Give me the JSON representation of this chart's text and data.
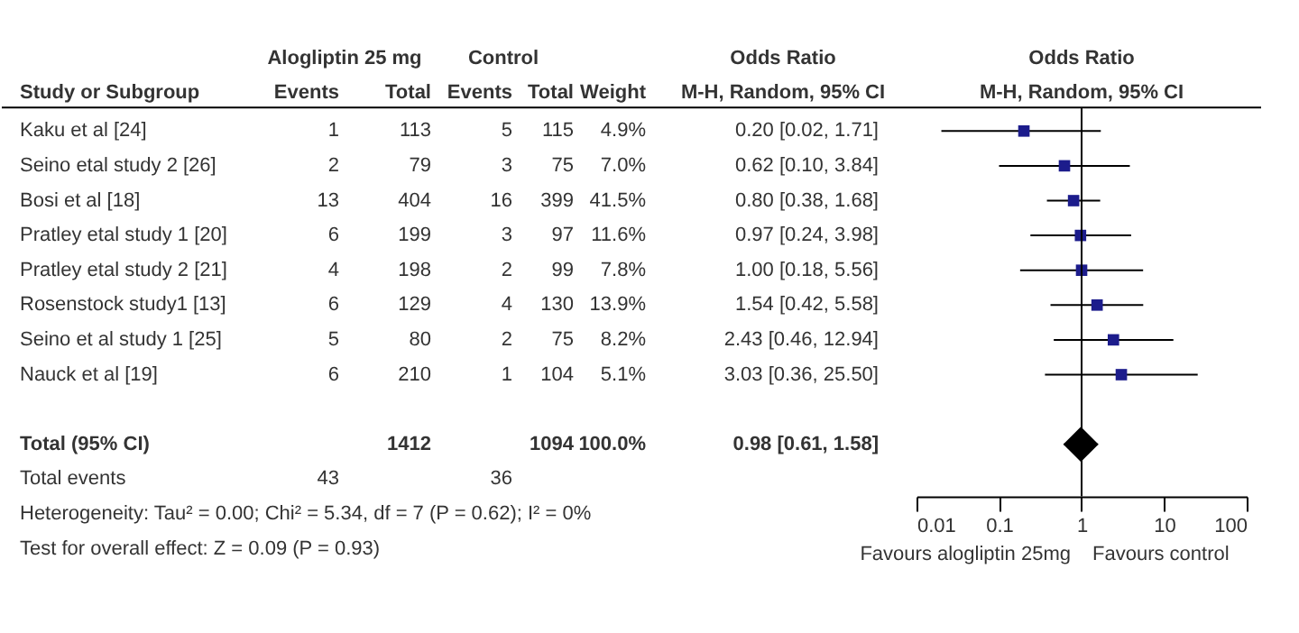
{
  "chart_data": [
    {
      "type": "other",
      "ylabel": "Study or Subgroup",
      "categories": [
        "Events",
        "Total",
        "Events",
        "Total",
        "Weight",
        "M-H, Random, 95% CI"
      ],
      "y_categories": [
        "Kaku et al [24]",
        "Seino etal study 2 [26]",
        "Bosi et al [18]",
        "Pratley etal study 1 [20]",
        "Pratley etal study 2 [21]",
        "Rosenstock study1  [13]",
        "Seino et al study 1 [25]",
        "Nauck et al [19]",
        null,
        "Total (95% CI)",
        "Total events"
      ],
      "cell_labels": [
        [
          "1",
          "113",
          "5",
          "115",
          "4.9%",
          "0.20 [0.02, 1.71]"
        ],
        [
          "2",
          "79",
          "3",
          "75",
          "7.0%",
          "0.62 [0.10, 3.84]"
        ],
        [
          "13",
          "404",
          "16",
          "399",
          "41.5%",
          "0.80 [0.38, 1.68]"
        ],
        [
          "6",
          "199",
          "3",
          "97",
          "11.6%",
          "0.97 [0.24, 3.98]"
        ],
        [
          "4",
          "198",
          "2",
          "99",
          "7.8%",
          "1.00 [0.18, 5.56]"
        ],
        [
          "6",
          "129",
          "4",
          "130",
          "13.9%",
          "1.54 [0.42, 5.58]"
        ],
        [
          "5",
          "80",
          "2",
          "75",
          "8.2%",
          "2.43 [0.46, 12.94]"
        ],
        [
          "6",
          "210",
          "1",
          "104",
          "5.1%",
          "3.03 [0.36, 25.50]"
        ],
        [
          null,
          null,
          null,
          null,
          null,
          null
        ],
        [
          null,
          "1412",
          null,
          "1094",
          "100.0%",
          "0.98 [0.61, 1.58]"
        ],
        [
          "43",
          null,
          "36",
          null,
          null,
          null
        ]
      ],
      "annotations": [
        "Alogliptin 25 mg",
        "Control",
        "Odds Ratio",
        "Heterogeneity: Tau² = 0.00; Chi² = 5.34, df = 7 (P = 0.62); I² = 0%",
        "Test for overall effect: Z = 0.09 (P = 0.93)"
      ]
    },
    {
      "type": "scatter",
      "orientation": "horizontal",
      "title": "Odds Ratio",
      "subtitle": "M-H, Random, 95% CI",
      "categories": [
        null,
        null,
        null,
        null,
        null,
        null,
        null,
        null,
        null,
        null,
        null
      ],
      "series": [
        {
          "color": "#1c1c8c",
          "marker": "square",
          "values": [
            0.2,
            0.62,
            0.8,
            0.97,
            1.0,
            1.54,
            2.43,
            3.03,
            null,
            null,
            null
          ],
          "errors": [
            [
              0.02,
              1.71
            ],
            [
              0.1,
              3.84
            ],
            [
              0.38,
              1.68
            ],
            [
              0.24,
              3.98
            ],
            [
              0.18,
              5.56
            ],
            [
              0.42,
              5.58
            ],
            [
              0.46,
              12.94
            ],
            [
              0.36,
              25.5
            ],
            null,
            null,
            null
          ]
        },
        {
          "color": "#000000",
          "marker": "diamond",
          "values": [
            null,
            null,
            null,
            null,
            null,
            null,
            null,
            null,
            null,
            0.98,
            null
          ],
          "errors": [
            null,
            null,
            null,
            null,
            null,
            null,
            null,
            null,
            null,
            [
              0.61,
              1.58
            ],
            null
          ]
        }
      ],
      "log": "x",
      "xlim": [
        0.01,
        100
      ],
      "xticks": [
        0.01,
        0.1,
        1,
        10,
        100
      ],
      "ref_lines": [
        {
          "axis": "x",
          "value": 1,
          "color": "#000000"
        }
      ],
      "annotations": [
        "Favours alogliptin 25mg",
        "Favours control"
      ],
      "grid": false
    }
  ]
}
